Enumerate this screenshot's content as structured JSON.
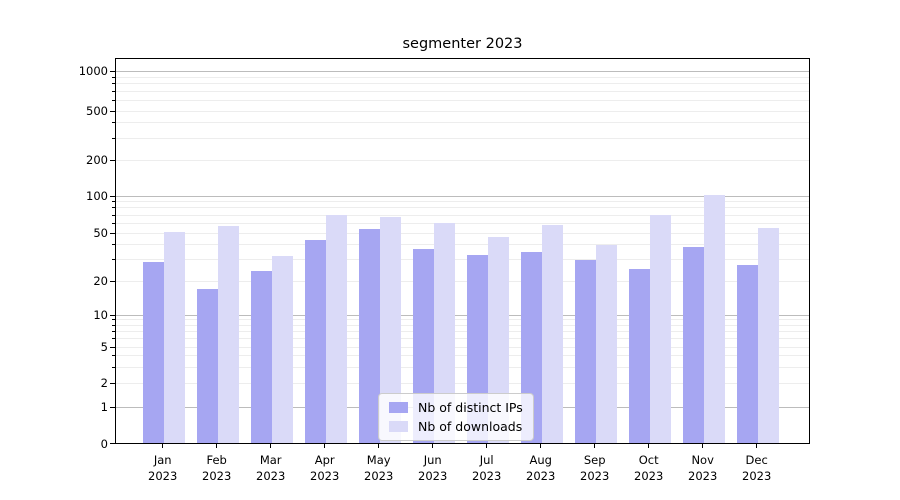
{
  "title": "segmenter 2023",
  "axes": {
    "y_ticks_labeled": [
      0,
      1,
      2,
      5,
      10,
      20,
      50,
      100,
      200,
      500,
      1000
    ],
    "x_tick_year": "2023",
    "x_tick_months": [
      "Jan",
      "Feb",
      "Mar",
      "Apr",
      "May",
      "Jun",
      "Jul",
      "Aug",
      "Sep",
      "Oct",
      "Nov",
      "Dec"
    ]
  },
  "legend": {
    "position": "lower center"
  },
  "chart_data": {
    "type": "bar",
    "title": "segmenter 2023",
    "categories": [
      "Jan 2023",
      "Feb 2023",
      "Mar 2023",
      "Apr 2023",
      "May 2023",
      "Jun 2023",
      "Jul 2023",
      "Aug 2023",
      "Sep 2023",
      "Oct 2023",
      "Nov 2023",
      "Dec 2023"
    ],
    "series": [
      {
        "name": "Nb of distinct IPs",
        "color": "#a6a6f2",
        "values": [
          29,
          17,
          24,
          44,
          54,
          37,
          33,
          35,
          30,
          25,
          38,
          27
        ]
      },
      {
        "name": "Nb of downloads",
        "color": "#dadaf8",
        "values": [
          51,
          57,
          32,
          70,
          68,
          60,
          46,
          58,
          40,
          70,
          101,
          55
        ]
      }
    ],
    "xlabel": "",
    "ylabel": "",
    "yscale": "symlog",
    "y_ticks": [
      0,
      1,
      2,
      5,
      10,
      20,
      50,
      100,
      200,
      500,
      1000
    ],
    "ylim": [
      0,
      1280
    ],
    "grid": "both",
    "grid_major_color": "#bcbcbc",
    "grid_minor_color": "#ededed",
    "legend_position": "lower center"
  }
}
